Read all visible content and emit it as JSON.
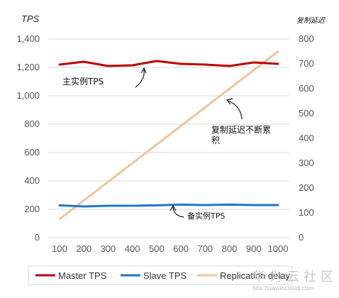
{
  "chart_data": {
    "type": "line",
    "x": [
      100,
      200,
      300,
      400,
      500,
      600,
      700,
      800,
      900,
      1000
    ],
    "y_left_label": "TPS",
    "y_right_label": "复制延迟",
    "y_left_range": [
      0,
      1400
    ],
    "y_left_ticks": [
      "0",
      "200",
      "400",
      "600",
      "800",
      "1,000",
      "1,200",
      "1,400"
    ],
    "y_left_tick_values": [
      0,
      200,
      400,
      600,
      800,
      1000,
      1200,
      1400
    ],
    "y_right_range": [
      0,
      800
    ],
    "y_right_ticks": [
      "0",
      "100",
      "200",
      "300",
      "400",
      "500",
      "600",
      "700",
      "800"
    ],
    "y_right_tick_values": [
      0,
      100,
      200,
      300,
      400,
      500,
      600,
      700,
      800
    ],
    "x_ticks": [
      "100",
      "200",
      "300",
      "400",
      "500",
      "600",
      "700",
      "800",
      "900",
      "1000"
    ],
    "grid": true,
    "legend_position": "bottom",
    "series": [
      {
        "name": "Master TPS",
        "axis": "left",
        "color": "#c00000",
        "values": [
          1220,
          1240,
          1210,
          1215,
          1245,
          1225,
          1220,
          1210,
          1235,
          1225
        ]
      },
      {
        "name": "Slave TPS",
        "axis": "left",
        "color": "#1f77c8",
        "values": [
          228,
          220,
          225,
          225,
          228,
          233,
          230,
          233,
          230,
          230
        ]
      },
      {
        "name": "Replication delay",
        "axis": "right",
        "color": "#f2c49b",
        "values": [
          75,
          150,
          225,
          300,
          375,
          450,
          525,
          600,
          675,
          750
        ]
      }
    ],
    "annotations": {
      "master": "主实例TPS",
      "delay_line1": "复制延迟不断累",
      "delay_line2": "积",
      "slave": "备实例TPS"
    }
  },
  "watermark": {
    "brand": "华为云社区",
    "url": "bbs.huaweicloud.com"
  }
}
